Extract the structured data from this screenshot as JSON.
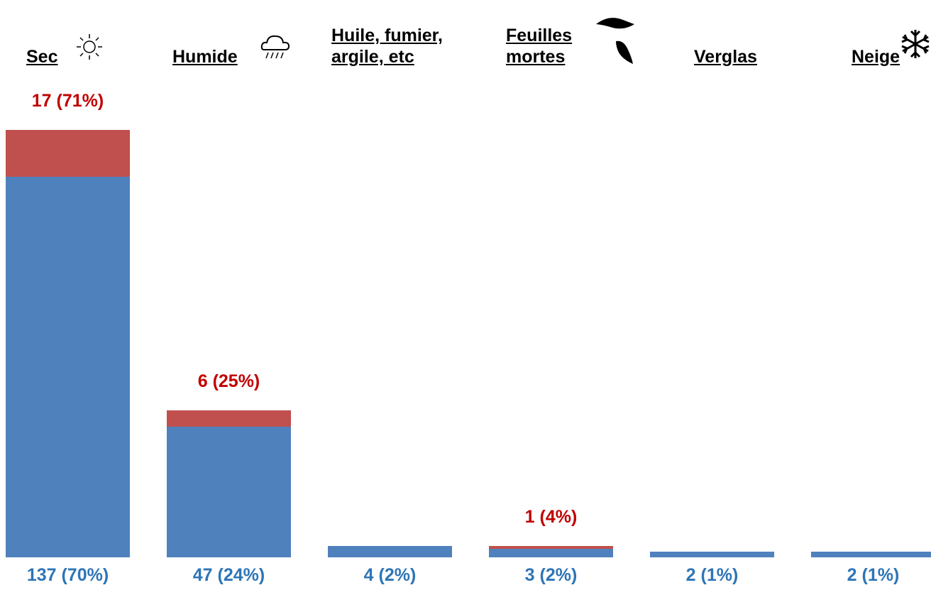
{
  "chart_data": {
    "type": "stacked_bar",
    "categories": [
      "Sec",
      "Humide",
      "Huile, fumier, argile, etc",
      "Feuilles mortes",
      "Verglas",
      "Neige"
    ],
    "series": [
      {
        "color": "#4f81bd",
        "values": [
          137,
          47,
          4,
          3,
          2,
          2
        ],
        "value_labels": [
          "137 (70%)",
          "47 (24%)",
          "4 (2%)",
          "3 (2%)",
          "2 (1%)",
          "2 (1%)"
        ]
      },
      {
        "color": "#c0504d",
        "values": [
          17,
          6,
          0,
          1,
          0,
          0
        ],
        "value_labels": [
          "17 (71%)",
          "6 (25%)",
          null,
          "1 (4%)",
          null,
          null
        ]
      }
    ]
  }
}
